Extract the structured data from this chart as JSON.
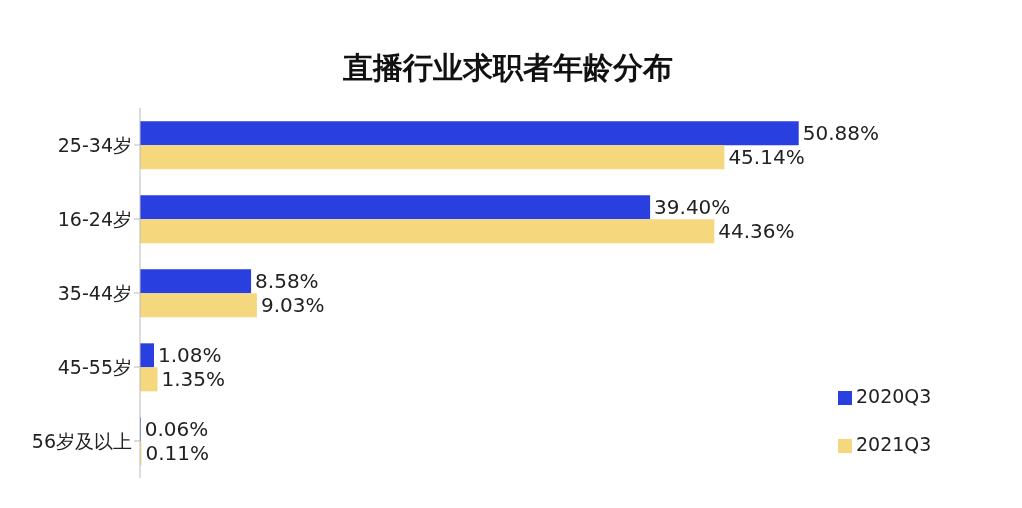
{
  "chart_data": {
    "type": "bar",
    "orientation": "horizontal",
    "title": "直播行业求职者年龄分布",
    "categories": [
      "25-34岁",
      "16-24岁",
      "35-44岁",
      "45-55岁",
      "56岁及以上"
    ],
    "series": [
      {
        "name": "2020Q3",
        "color": "#2a3fe0",
        "values": [
          50.88,
          39.4,
          8.58,
          1.08,
          0.06
        ],
        "value_labels": [
          "50.88%",
          "39.40%",
          "8.58%",
          "1.08%",
          "0.06%"
        ]
      },
      {
        "name": "2021Q3",
        "color": "#f5d77e",
        "values": [
          45.14,
          44.36,
          9.03,
          1.35,
          0.11
        ],
        "value_labels": [
          "45.14%",
          "44.36%",
          "9.03%",
          "1.35%",
          "0.11%"
        ]
      }
    ],
    "legend": "bottom right",
    "grid": false
  }
}
